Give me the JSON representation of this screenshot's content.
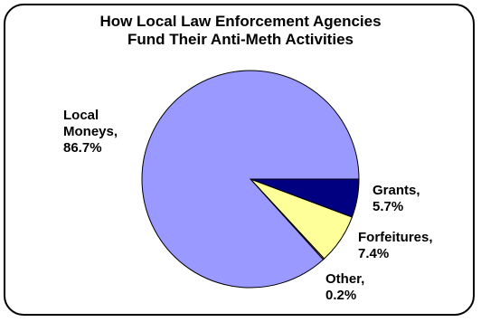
{
  "chart_data": {
    "type": "pie",
    "title_line1": "How Local Law Enforcement Agencies",
    "title_line2": "Fund Their Anti-Meth Activities",
    "slices": [
      {
        "label_line1": "Grants,",
        "label_line2": "5.7%",
        "value": 5.7,
        "color": "#000080"
      },
      {
        "label_line1": "Forfeitures,",
        "label_line2": "7.4%",
        "value": 7.4,
        "color": "#ffff99"
      },
      {
        "label_line1": "Other,",
        "label_line2": "0.2%",
        "value": 0.2,
        "color": "#ff8080"
      },
      {
        "label_line1": "Local",
        "label_line2": "Moneys,",
        "label_line3": "86.7%",
        "value": 86.7,
        "color": "#9999ff"
      }
    ]
  }
}
